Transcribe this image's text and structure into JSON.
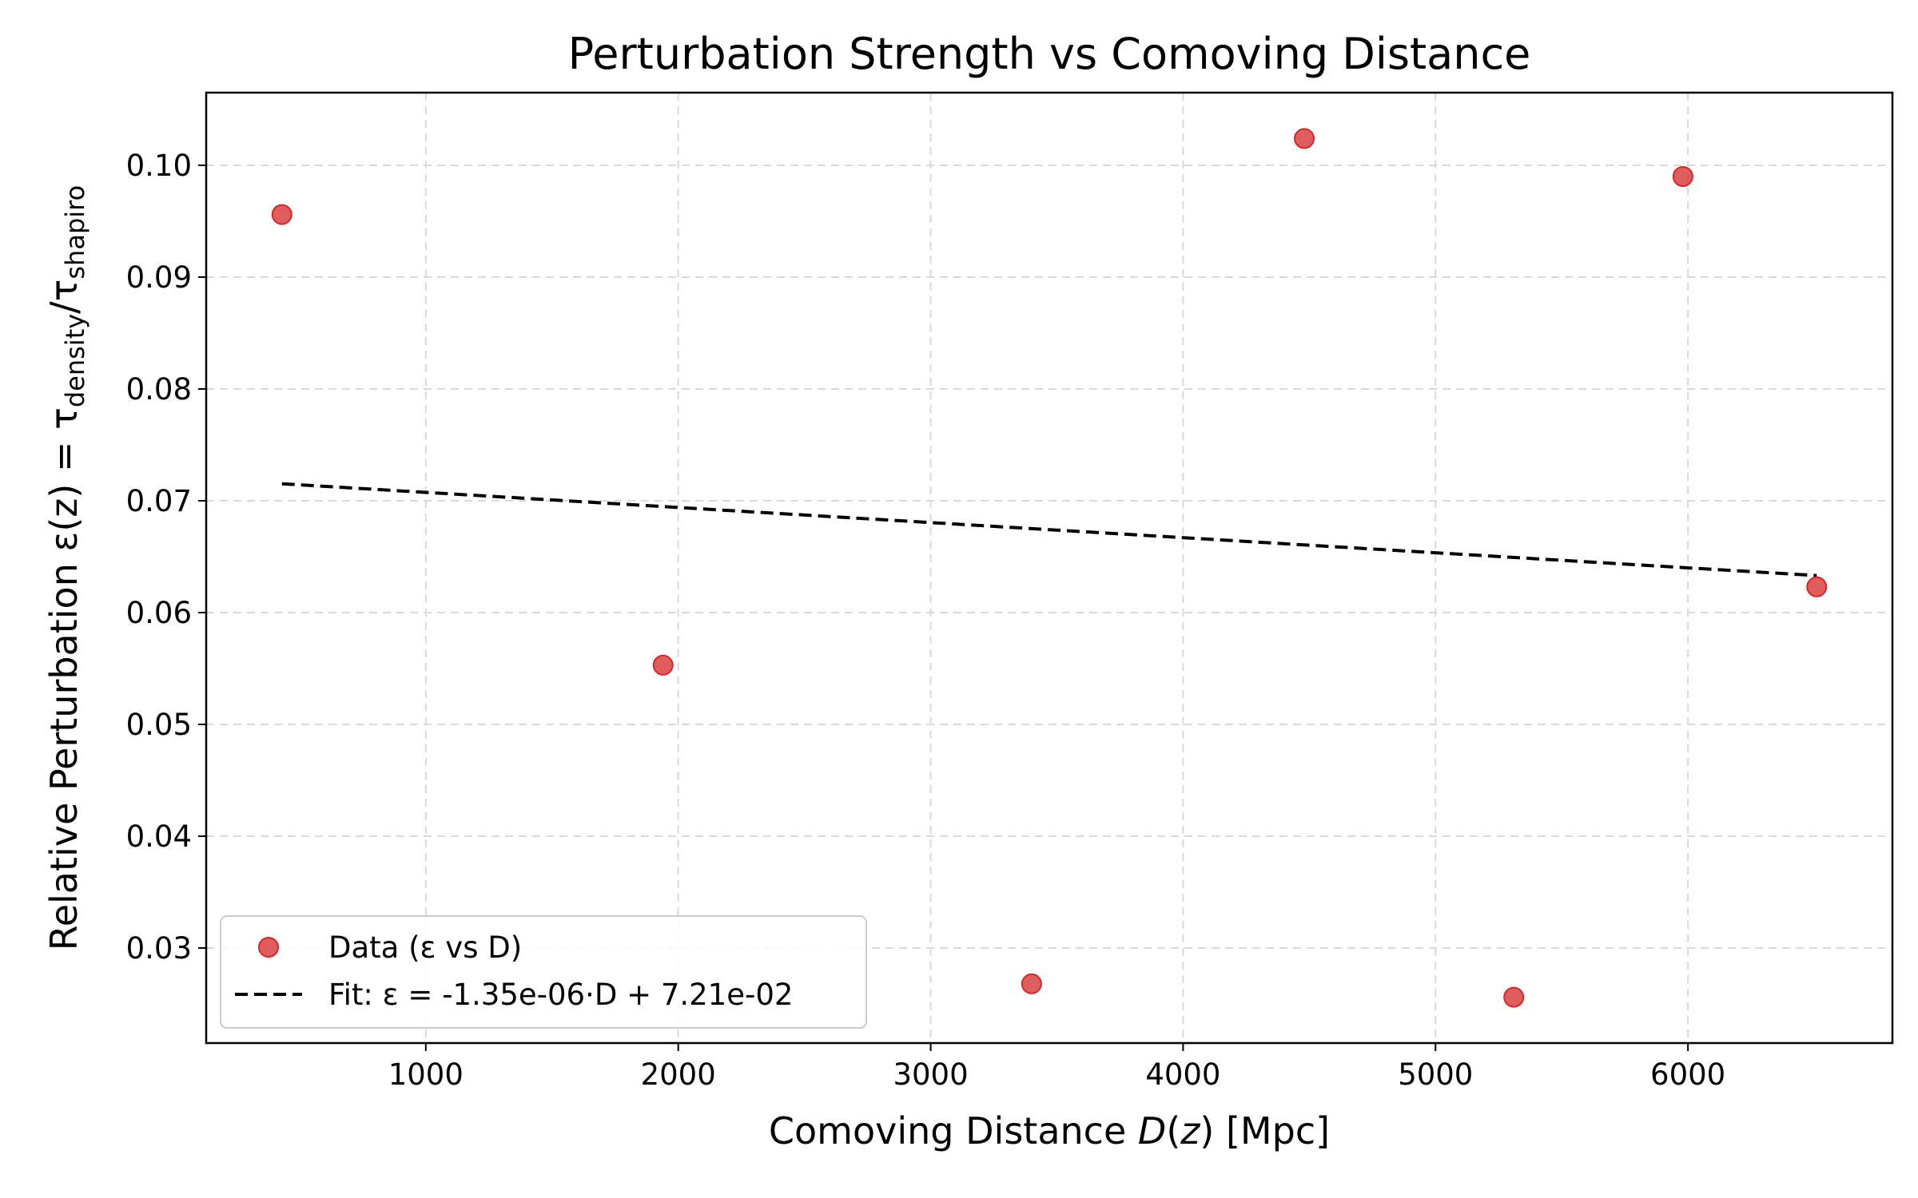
{
  "chart_data": {
    "type": "scatter",
    "title": "Perturbation Strength vs Comoving Distance",
    "xlabel": {
      "prefix": "Comoving Distance ",
      "var": "D",
      "mid": "(",
      "var2": "z",
      "suffix": ") [Mpc]"
    },
    "ylabel": {
      "text": "Relative Perturbation ε(z) = τ",
      "sub1": "density",
      "mid": "/τ",
      "sub2": "shapiro"
    },
    "xlim": [
      130,
      6810
    ],
    "ylim": [
      0.0215,
      0.1065
    ],
    "xticks": [
      1000,
      2000,
      3000,
      4000,
      5000,
      6000
    ],
    "xtick_labels": [
      "1000",
      "2000",
      "3000",
      "4000",
      "5000",
      "6000"
    ],
    "yticks": [
      0.03,
      0.04,
      0.05,
      0.06,
      0.07,
      0.08,
      0.09,
      0.1
    ],
    "ytick_labels": [
      "0.03",
      "0.04",
      "0.05",
      "0.06",
      "0.07",
      "0.08",
      "0.09",
      "0.10"
    ],
    "grid": true,
    "legend_position": "lower-left",
    "series": [
      {
        "name": "Data (ε vs D)",
        "kind": "scatter",
        "color": "#d62728",
        "points": [
          {
            "x": 430,
            "y": 0.0956
          },
          {
            "x": 1940,
            "y": 0.0553
          },
          {
            "x": 3400,
            "y": 0.0268
          },
          {
            "x": 4480,
            "y": 0.1024
          },
          {
            "x": 5310,
            "y": 0.0256
          },
          {
            "x": 5980,
            "y": 0.099
          },
          {
            "x": 6510,
            "y": 0.0623
          }
        ]
      },
      {
        "name": "Fit: ε = -1.35e-06·D + 7.21e-02",
        "kind": "line",
        "style": "dashed",
        "color": "#000000",
        "slope": -1.35e-06,
        "intercept": 0.0721,
        "x_range": [
          430,
          6510
        ]
      }
    ]
  }
}
